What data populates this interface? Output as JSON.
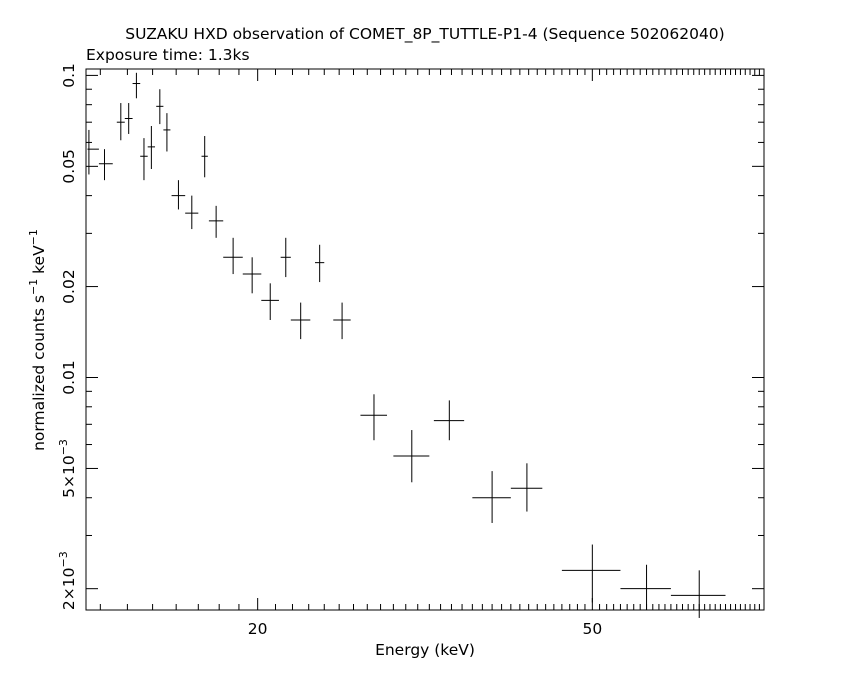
{
  "chart_data": {
    "type": "scatter",
    "title": "SUZAKU HXD observation of COMET_8P_TUTTLE-P1-4 (Sequence 502062040)",
    "subtitle": "Exposure time: 1.3ks",
    "xlabel": "Energy (keV)",
    "ylabel": "normalized counts s^-1 keV^-1",
    "xscale": "log",
    "yscale": "log",
    "xlim": [
      12.5,
      80
    ],
    "ylim": [
      0.0017,
      0.105
    ],
    "grid": false,
    "x_ticks_labeled": [
      {
        "value": 20,
        "label": "20"
      },
      {
        "value": 50,
        "label": "50"
      }
    ],
    "y_ticks_labeled": [
      {
        "value": 0.1,
        "label": "0.1"
      },
      {
        "value": 0.05,
        "label": "0.05"
      },
      {
        "value": 0.02,
        "label": "0.02"
      },
      {
        "value": 0.01,
        "label": "0.01"
      },
      {
        "value": 0.005,
        "label": "5×10",
        "exp": "−3"
      },
      {
        "value": 0.002,
        "label": "2×10",
        "exp": "−3"
      }
    ],
    "points": [
      {
        "x": 12.6,
        "xerr": [
          12.55,
          12.95
        ],
        "y": 0.057,
        "yerr": [
          0.047,
          0.066
        ]
      },
      {
        "x": 13.15,
        "xerr": [
          12.95,
          13.45
        ],
        "y": 0.051,
        "yerr": [
          0.045,
          0.057
        ]
      },
      {
        "x": 13.75,
        "xerr": [
          13.6,
          13.9
        ],
        "y": 0.07,
        "yerr": [
          0.061,
          0.081
        ]
      },
      {
        "x": 14.05,
        "xerr": [
          13.9,
          14.2
        ],
        "y": 0.072,
        "yerr": [
          0.064,
          0.081
        ]
      },
      {
        "x": 14.35,
        "xerr": [
          14.2,
          14.5
        ],
        "y": 0.094,
        "yerr": [
          0.084,
          0.102
        ]
      },
      {
        "x": 14.65,
        "xerr": [
          14.5,
          14.8
        ],
        "y": 0.054,
        "yerr": [
          0.045,
          0.062
        ]
      },
      {
        "x": 14.95,
        "xerr": [
          14.8,
          15.1
        ],
        "y": 0.058,
        "yerr": [
          0.049,
          0.068
        ]
      },
      {
        "x": 15.3,
        "xerr": [
          15.15,
          15.45
        ],
        "y": 0.079,
        "yerr": [
          0.069,
          0.09
        ]
      },
      {
        "x": 15.6,
        "xerr": [
          15.45,
          15.75
        ],
        "y": 0.066,
        "yerr": [
          0.056,
          0.075
        ]
      },
      {
        "x": 16.1,
        "xerr": [
          15.8,
          16.4
        ],
        "y": 0.04,
        "yerr": [
          0.036,
          0.045
        ]
      },
      {
        "x": 16.7,
        "xerr": [
          16.4,
          17.0
        ],
        "y": 0.035,
        "yerr": [
          0.031,
          0.04
        ]
      },
      {
        "x": 17.3,
        "xerr": [
          17.15,
          17.45
        ],
        "y": 0.054,
        "yerr": [
          0.046,
          0.063
        ]
      },
      {
        "x": 17.85,
        "xerr": [
          17.5,
          18.2
        ],
        "y": 0.033,
        "yerr": [
          0.029,
          0.037
        ]
      },
      {
        "x": 18.7,
        "xerr": [
          18.2,
          19.2
        ],
        "y": 0.025,
        "yerr": [
          0.022,
          0.029
        ]
      },
      {
        "x": 19.7,
        "xerr": [
          19.2,
          20.2
        ],
        "y": 0.022,
        "yerr": [
          0.019,
          0.025
        ]
      },
      {
        "x": 20.7,
        "xerr": [
          20.2,
          21.2
        ],
        "y": 0.018,
        "yerr": [
          0.0155,
          0.0205
        ]
      },
      {
        "x": 21.6,
        "xerr": [
          21.3,
          21.9
        ],
        "y": 0.025,
        "yerr": [
          0.0215,
          0.029
        ]
      },
      {
        "x": 22.5,
        "xerr": [
          21.9,
          23.1
        ],
        "y": 0.0155,
        "yerr": [
          0.0134,
          0.0177
        ]
      },
      {
        "x": 23.7,
        "xerr": [
          23.4,
          24.0
        ],
        "y": 0.024,
        "yerr": [
          0.0207,
          0.0275
        ]
      },
      {
        "x": 25.2,
        "xerr": [
          24.6,
          25.8
        ],
        "y": 0.0155,
        "yerr": [
          0.0134,
          0.0177
        ]
      },
      {
        "x": 27.5,
        "xerr": [
          26.5,
          28.5
        ],
        "y": 0.0075,
        "yerr": [
          0.0062,
          0.0088
        ]
      },
      {
        "x": 30.5,
        "xerr": [
          29.0,
          32.0
        ],
        "y": 0.0055,
        "yerr": [
          0.0045,
          0.0067
        ]
      },
      {
        "x": 33.8,
        "xerr": [
          32.4,
          35.2
        ],
        "y": 0.0072,
        "yerr": [
          0.0062,
          0.0084
        ]
      },
      {
        "x": 38.0,
        "xerr": [
          36.0,
          40.0
        ],
        "y": 0.004,
        "yerr": [
          0.0033,
          0.0049
        ]
      },
      {
        "x": 41.8,
        "xerr": [
          40.0,
          43.6
        ],
        "y": 0.0043,
        "yerr": [
          0.0036,
          0.0052
        ]
      },
      {
        "x": 50.0,
        "xerr": [
          46.0,
          54.0
        ],
        "y": 0.0023,
        "yerr": [
          0.0018,
          0.0028
        ]
      },
      {
        "x": 58.0,
        "xerr": [
          54.0,
          62.0
        ],
        "y": 0.002,
        "yerr": [
          0.0017,
          0.0024
        ]
      },
      {
        "x": 67.0,
        "xerr": [
          62.0,
          72.0
        ],
        "y": 0.0019,
        "yerr": [
          0.0016,
          0.0023
        ]
      }
    ]
  }
}
